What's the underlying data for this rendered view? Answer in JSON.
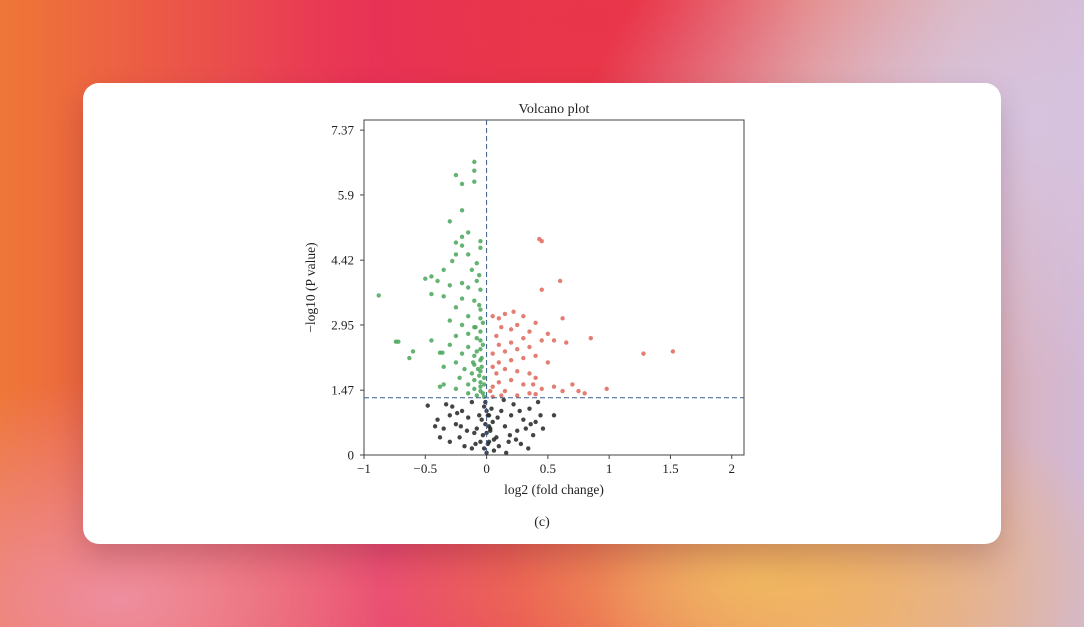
{
  "caption": "(c)",
  "chart_data": {
    "type": "scatter",
    "title": "Volcano plot",
    "xlabel": "log2 (fold change)",
    "ylabel": "−log10 (P value)",
    "xlim": [
      -1,
      2.1
    ],
    "ylim": [
      0,
      7.6
    ],
    "xticks": [
      -1,
      -0.5,
      0,
      0.5,
      1,
      1.5,
      2
    ],
    "xtick_labels": [
      "−1",
      "−0.5",
      "0",
      "0.5",
      "1",
      "1.5",
      "2"
    ],
    "yticks": [
      0,
      1.47,
      2.95,
      4.42,
      5.9,
      7.37
    ],
    "ytick_labels": [
      "0",
      "1.47",
      "2.95",
      "4.42",
      "5.9",
      "7.37"
    ],
    "threshold_lines": {
      "x": 0,
      "y": 1.3
    },
    "grid": false,
    "colors": {
      "down": "#4fa860",
      "up": "#e06b5e",
      "ns": "#2a2a2a",
      "threshold": "#3a5e8c"
    },
    "series": [
      {
        "group": "down",
        "points": [
          [
            -0.1,
            6.65
          ],
          [
            -0.1,
            6.45
          ],
          [
            -0.1,
            6.2
          ],
          [
            -0.25,
            6.35
          ],
          [
            -0.2,
            6.15
          ],
          [
            -0.2,
            5.55
          ],
          [
            -0.3,
            5.3
          ],
          [
            -0.15,
            5.05
          ],
          [
            -0.2,
            4.95
          ],
          [
            -0.25,
            4.82
          ],
          [
            -0.2,
            4.75
          ],
          [
            -0.05,
            4.85
          ],
          [
            -0.05,
            4.7
          ],
          [
            -0.15,
            4.55
          ],
          [
            -0.25,
            4.55
          ],
          [
            -0.08,
            4.35
          ],
          [
            -0.12,
            4.2
          ],
          [
            -0.06,
            4.08
          ],
          [
            -0.28,
            4.4
          ],
          [
            -0.35,
            4.2
          ],
          [
            -0.45,
            4.05
          ],
          [
            -0.5,
            4.0
          ],
          [
            -0.4,
            3.95
          ],
          [
            -0.2,
            3.9
          ],
          [
            -0.08,
            3.95
          ],
          [
            -0.3,
            3.85
          ],
          [
            -0.15,
            3.8
          ],
          [
            -0.05,
            3.75
          ],
          [
            -0.45,
            3.65
          ],
          [
            -0.35,
            3.6
          ],
          [
            -0.2,
            3.55
          ],
          [
            -0.1,
            3.5
          ],
          [
            -0.88,
            3.62
          ],
          [
            -0.25,
            3.35
          ],
          [
            -0.05,
            3.3
          ],
          [
            -0.15,
            3.15
          ],
          [
            -0.3,
            3.05
          ],
          [
            -0.05,
            3.1
          ],
          [
            -0.2,
            2.95
          ],
          [
            -0.1,
            2.9
          ],
          [
            -0.05,
            2.8
          ],
          [
            -0.15,
            2.75
          ],
          [
            -0.08,
            2.65
          ],
          [
            -0.25,
            2.7
          ],
          [
            -0.72,
            2.57
          ],
          [
            -0.74,
            2.57
          ],
          [
            -0.45,
            2.6
          ],
          [
            -0.3,
            2.5
          ],
          [
            -0.15,
            2.45
          ],
          [
            -0.05,
            2.4
          ],
          [
            -0.6,
            2.35
          ],
          [
            -0.38,
            2.32
          ],
          [
            -0.36,
            2.32
          ],
          [
            -0.2,
            2.3
          ],
          [
            -0.1,
            2.25
          ],
          [
            -0.63,
            2.2
          ],
          [
            -0.05,
            2.15
          ],
          [
            -0.25,
            2.1
          ],
          [
            -0.1,
            2.05
          ],
          [
            -0.35,
            2.0
          ],
          [
            -0.18,
            1.95
          ],
          [
            -0.05,
            1.9
          ],
          [
            -0.12,
            1.85
          ],
          [
            -0.06,
            1.8
          ],
          [
            -0.22,
            1.75
          ],
          [
            -0.1,
            1.7
          ],
          [
            -0.05,
            1.65
          ],
          [
            -0.35,
            1.6
          ],
          [
            -0.15,
            1.6
          ],
          [
            -0.05,
            1.55
          ],
          [
            -0.25,
            1.5
          ],
          [
            -0.1,
            1.5
          ],
          [
            -0.38,
            1.55
          ],
          [
            -0.05,
            1.45
          ],
          [
            -0.15,
            1.4
          ],
          [
            -0.03,
            1.4
          ],
          [
            -0.08,
            1.35
          ],
          [
            -0.02,
            1.32
          ],
          [
            -0.04,
            2.0
          ],
          [
            -0.03,
            2.5
          ],
          [
            -0.02,
            1.75
          ],
          [
            -0.03,
            3.0
          ],
          [
            -0.04,
            2.2
          ],
          [
            -0.02,
            1.6
          ],
          [
            -0.05,
            2.6
          ],
          [
            -0.06,
            3.4
          ],
          [
            -0.08,
            2.35
          ],
          [
            -0.07,
            1.95
          ],
          [
            -0.09,
            2.9
          ],
          [
            -0.11,
            2.1
          ]
        ]
      },
      {
        "group": "up",
        "points": [
          [
            0.43,
            4.9
          ],
          [
            0.45,
            4.85
          ],
          [
            0.6,
            3.95
          ],
          [
            0.45,
            3.75
          ],
          [
            0.22,
            3.25
          ],
          [
            0.05,
            3.15
          ],
          [
            0.1,
            3.1
          ],
          [
            0.15,
            3.2
          ],
          [
            0.3,
            3.15
          ],
          [
            0.62,
            3.1
          ],
          [
            0.4,
            3.0
          ],
          [
            0.25,
            2.95
          ],
          [
            0.12,
            2.9
          ],
          [
            0.2,
            2.85
          ],
          [
            0.35,
            2.8
          ],
          [
            0.5,
            2.75
          ],
          [
            0.08,
            2.7
          ],
          [
            0.3,
            2.65
          ],
          [
            0.45,
            2.6
          ],
          [
            0.55,
            2.6
          ],
          [
            0.65,
            2.55
          ],
          [
            0.85,
            2.65
          ],
          [
            0.2,
            2.55
          ],
          [
            0.1,
            2.5
          ],
          [
            0.35,
            2.45
          ],
          [
            0.25,
            2.4
          ],
          [
            0.15,
            2.35
          ],
          [
            0.05,
            2.3
          ],
          [
            0.4,
            2.25
          ],
          [
            1.28,
            2.3
          ],
          [
            1.52,
            2.35
          ],
          [
            0.3,
            2.2
          ],
          [
            0.2,
            2.15
          ],
          [
            0.1,
            2.1
          ],
          [
            0.5,
            2.1
          ],
          [
            0.05,
            2.0
          ],
          [
            0.15,
            1.95
          ],
          [
            0.25,
            1.9
          ],
          [
            0.35,
            1.85
          ],
          [
            0.08,
            1.85
          ],
          [
            0.4,
            1.75
          ],
          [
            0.2,
            1.7
          ],
          [
            0.1,
            1.65
          ],
          [
            0.3,
            1.6
          ],
          [
            0.55,
            1.55
          ],
          [
            0.7,
            1.6
          ],
          [
            0.05,
            1.55
          ],
          [
            0.45,
            1.5
          ],
          [
            0.15,
            1.45
          ],
          [
            0.75,
            1.45
          ],
          [
            0.98,
            1.5
          ],
          [
            0.8,
            1.4
          ],
          [
            0.35,
            1.4
          ],
          [
            0.03,
            1.45
          ],
          [
            0.25,
            1.35
          ],
          [
            0.12,
            1.35
          ],
          [
            0.05,
            1.32
          ],
          [
            0.4,
            1.38
          ],
          [
            0.62,
            1.45
          ],
          [
            0.38,
            1.6
          ]
        ]
      },
      {
        "group": "ns",
        "points": [
          [
            -0.48,
            1.12
          ],
          [
            -0.3,
            0.9
          ],
          [
            -0.4,
            0.8
          ],
          [
            -0.35,
            0.6
          ],
          [
            -0.25,
            0.7
          ],
          [
            -0.2,
            1.0
          ],
          [
            -0.15,
            0.85
          ],
          [
            -0.1,
            0.5
          ],
          [
            -0.05,
            0.3
          ],
          [
            -0.22,
            0.4
          ],
          [
            -0.3,
            0.3
          ],
          [
            -0.12,
            0.15
          ],
          [
            -0.08,
            0.6
          ],
          [
            -0.02,
            1.1
          ],
          [
            0.02,
            0.9
          ],
          [
            0.05,
            0.75
          ],
          [
            0.08,
            0.4
          ],
          [
            0.1,
            0.2
          ],
          [
            0.12,
            1.0
          ],
          [
            0.15,
            0.65
          ],
          [
            0.18,
            0.3
          ],
          [
            0.2,
            0.9
          ],
          [
            0.25,
            0.55
          ],
          [
            0.3,
            0.8
          ],
          [
            0.35,
            1.05
          ],
          [
            0.38,
            0.45
          ],
          [
            0.4,
            0.75
          ],
          [
            0.42,
            1.2
          ],
          [
            0.55,
            0.9
          ],
          [
            0.22,
            1.15
          ],
          [
            0.28,
            0.25
          ],
          [
            0.32,
            0.6
          ],
          [
            -0.38,
            0.4
          ],
          [
            -0.28,
            1.1
          ],
          [
            -0.18,
            0.2
          ],
          [
            -0.06,
            0.9
          ],
          [
            0.06,
            0.1
          ],
          [
            0.16,
            0.05
          ],
          [
            -0.16,
            0.55
          ],
          [
            0.0,
            0.05
          ],
          [
            -0.03,
            0.45
          ],
          [
            0.03,
            0.6
          ],
          [
            0.24,
            0.35
          ],
          [
            -0.24,
            0.95
          ],
          [
            -0.33,
            1.15
          ],
          [
            0.46,
            0.6
          ],
          [
            0.34,
            0.15
          ],
          [
            -0.12,
            1.2
          ],
          [
            0.14,
            1.25
          ],
          [
            0.09,
            0.85
          ],
          [
            -0.09,
            0.25
          ],
          [
            0.19,
            0.45
          ],
          [
            -0.21,
            0.65
          ],
          [
            0.27,
            1.0
          ],
          [
            0.44,
            0.9
          ],
          [
            0.36,
            0.7
          ],
          [
            -0.42,
            0.65
          ],
          [
            0.01,
            0.25
          ],
          [
            -0.01,
            0.7
          ],
          [
            0.04,
            1.05
          ],
          [
            0.0,
            0.5
          ],
          [
            0.02,
            0.3
          ],
          [
            -0.02,
            0.15
          ],
          [
            0.01,
            0.9
          ],
          [
            -0.01,
            1.2
          ],
          [
            0.03,
            0.55
          ],
          [
            -0.04,
            0.8
          ],
          [
            0.06,
            0.35
          ],
          [
            0.0,
            1.0
          ],
          [
            0.02,
            0.65
          ]
        ]
      }
    ]
  }
}
